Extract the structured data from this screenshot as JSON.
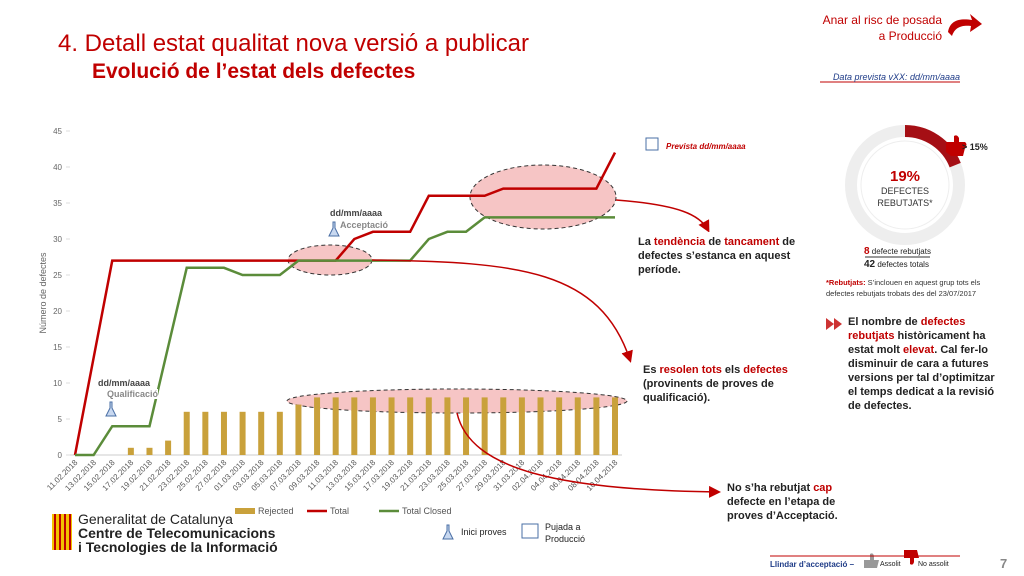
{
  "header": {
    "title": "4. Detall estat qualitat nova versió a publicar",
    "subtitle": "Evolució de l’estat dels defectes",
    "risk_link": "Anar al risc de posada a Producció",
    "date_note": "Data prevista vXX: dd/mm/aaaa"
  },
  "chart_data": {
    "type": "bar-line",
    "y_label": "Número de defectes",
    "categories": [
      "11.02.2018",
      "13.02.2018",
      "15.02.2018",
      "17.02.2018",
      "19.02.2018",
      "21.02.2018",
      "23.02.2018",
      "25.02.2018",
      "27.02.2018",
      "01.03.2018",
      "03.03.2018",
      "05.03.2018",
      "07.03.2018",
      "09.03.2018",
      "11.03.2018",
      "13.03.2018",
      "15.03.2018",
      "17.03.2018",
      "19.03.2018",
      "21.03.2018",
      "23.03.2018",
      "25.03.2018",
      "27.03.2018",
      "29.03.2018",
      "31.03.2018",
      "02.04.2018",
      "04.04.2018",
      "06.04.2018",
      "08.04.2018",
      "10.04.2018"
    ],
    "series": [
      {
        "name": "Rejected",
        "kind": "bar",
        "color": "#c9a13b",
        "values": [
          0,
          0,
          0,
          1,
          1,
          2,
          6,
          6,
          6,
          6,
          6,
          6,
          7,
          8,
          8,
          8,
          8,
          8,
          8,
          8,
          8,
          8,
          8,
          8,
          8,
          8,
          8,
          8,
          8,
          8
        ]
      },
      {
        "name": "Total",
        "kind": "line",
        "color": "#c00000",
        "values": [
          0,
          13.5,
          27,
          27,
          27,
          27,
          27,
          27,
          27,
          27,
          27,
          27,
          27,
          27,
          27,
          30,
          31,
          31,
          31,
          36,
          36,
          36,
          36,
          37,
          37,
          37,
          37,
          37,
          37,
          42
        ]
      },
      {
        "name": "Total Closed",
        "kind": "line",
        "color": "#5b8c3a",
        "values": [
          0,
          0,
          4,
          4,
          4,
          15,
          26,
          26,
          26,
          25,
          25,
          25,
          27,
          27,
          27,
          27,
          27,
          27,
          27,
          30,
          31,
          31,
          33,
          33,
          33,
          33,
          33,
          33,
          33,
          33
        ]
      }
    ],
    "ylim": [
      0,
      45
    ],
    "yticks": [
      0,
      5,
      10,
      15,
      20,
      25,
      30,
      35,
      40,
      45
    ],
    "annotations": [
      {
        "date": "dd/mm/aaaa",
        "label": "Acceptació"
      },
      {
        "date": "dd/mm/aaaa",
        "label": "Qualificació"
      },
      {
        "label": "Prevista dd/mm/aaaa"
      }
    ]
  },
  "kpi": {
    "value": 19,
    "value_label": "19%",
    "label": "DEFECTES REBUTJATS*",
    "threshold": "> 15%",
    "rejected": 8,
    "rejected_label": "defecte rebutjats",
    "total": 42,
    "total_label": "defectes totals",
    "note_bold": "*Rebutjats:",
    "note": " S’inclouen en aquest grup tots els defectes rebutjats trobats des del 23/07/2017"
  },
  "callouts": [
    [
      "La ",
      "tendència",
      " de ",
      "tancament",
      " de defectes s’estanca en aquest període."
    ],
    [
      "Es ",
      "resolen tots",
      " els ",
      "defectes",
      " (provinents de proves de qualificació)."
    ],
    [
      "No s’ha rebutjat ",
      "cap",
      " defecte en l’etapa de proves d’Acceptació."
    ],
    [
      "El nombre de ",
      "defectes rebutjats",
      " històricament ha estat molt ",
      "elevat",
      ". Cal fer-lo disminuir de cara a futures versions per tal d’optimitzar el temps dedicat a la revisió de defectes."
    ]
  ],
  "footer": {
    "org": [
      "Generalitat de Catalunya",
      "Centre de Telecomunicacions",
      "i Tecnologies de la Informació"
    ],
    "start": "Inici proves",
    "prod": "Pujada a Producció",
    "threshold": "Llindar d’acceptació –",
    "achieved": "Assolit",
    "not_achieved": "No assolit",
    "page": 7
  }
}
